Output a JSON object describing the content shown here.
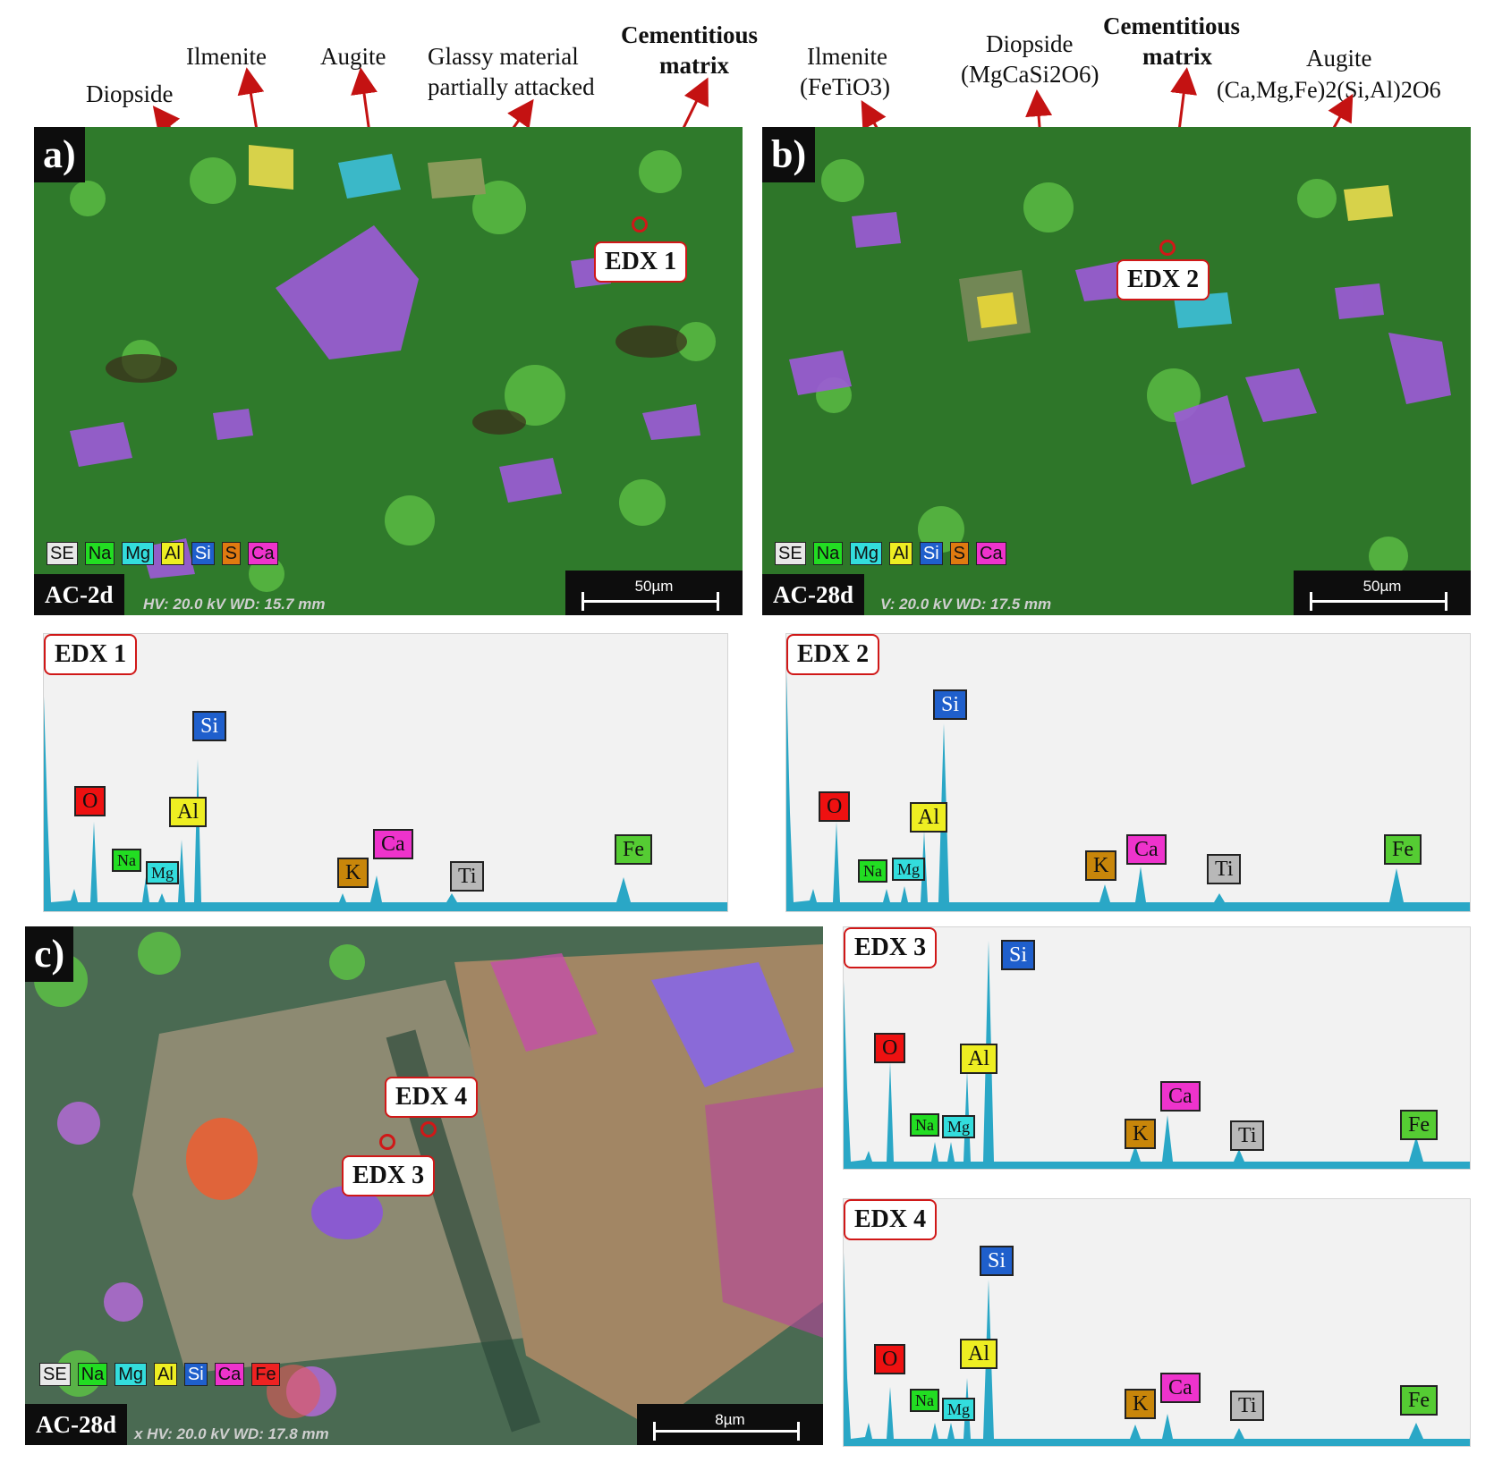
{
  "top_labels": {
    "a": {
      "diopside": "Diopside",
      "ilmenite": "Ilmenite",
      "augite": "Augite",
      "glassy_line1": "Glassy material",
      "glassy_line2": "partially attacked",
      "cementitious": "Cementitious",
      "matrix": "matrix"
    },
    "b": {
      "ilmenite": "Ilmenite",
      "ilmenite_formula": "(FeTiO3)",
      "diopside": "Diopside",
      "diopside_formula": "(MgCaSi2O6)",
      "cementitious": "Cementitious",
      "matrix": "matrix",
      "augite": "Augite",
      "augite_formula": "(Ca,Mg,Fe)2(Si,Al)2O6"
    }
  },
  "panels": [
    {
      "tag": "a)",
      "sample": "AC-2d",
      "hvwd": "HV: 20.0 kV   WD: 15.7 mm",
      "scale": "50µm",
      "edx": "EDX 1"
    },
    {
      "tag": "b)",
      "sample": "AC-28d",
      "hvwd": "V: 20.0 kV   WD: 17.5 mm",
      "scale": "50µm",
      "edx": "EDX 2"
    },
    {
      "tag": "c)",
      "sample": "AC-28d",
      "hvwd": "x   HV: 20.0 kV   WD: 17.8 mm",
      "scale": "8µm",
      "edx3": "EDX 3",
      "edx4": "EDX 4"
    }
  ],
  "element_legend_ab": [
    "SE",
    "Na",
    "Mg",
    "Al",
    "Si",
    "S",
    "Ca"
  ],
  "element_legend_c": [
    "SE",
    "Na",
    "Mg",
    "Al",
    "Si",
    "Ca",
    "Fe"
  ],
  "element_colors": {
    "SE": "#e8e8e8",
    "Na": "#22dd22",
    "Mg": "#33dddd",
    "Al": "#eeee22",
    "Si": "#1f5fcc",
    "S": "#e07a10",
    "Ca": "#ee33cc",
    "Fe": "#ee2222",
    "O": "#ee1111",
    "K": "#c8860a",
    "Ti": "#b8b8b8"
  },
  "spectrum_color": "#2aa7c6",
  "spectra": [
    {
      "title": "EDX 1",
      "peaks": [
        "O",
        "Na",
        "Mg",
        "Al",
        "Si",
        "K",
        "Ca",
        "Ti",
        "Fe"
      ]
    },
    {
      "title": "EDX 2",
      "peaks": [
        "O",
        "Na",
        "Mg",
        "Al",
        "Si",
        "K",
        "Ca",
        "Ti",
        "Fe"
      ]
    },
    {
      "title": "EDX 3",
      "peaks": [
        "O",
        "Na",
        "Mg",
        "Al",
        "Si",
        "K",
        "Ca",
        "Ti",
        "Fe"
      ]
    },
    {
      "title": "EDX 4",
      "peaks": [
        "O",
        "Na",
        "Mg",
        "Al",
        "Si",
        "K",
        "Ca",
        "Ti",
        "Fe"
      ]
    }
  ]
}
